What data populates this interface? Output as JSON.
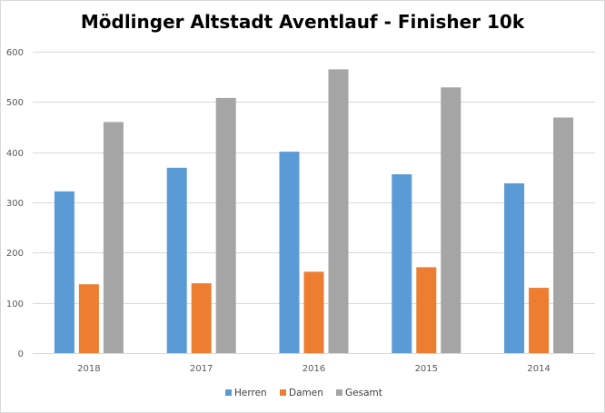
{
  "chart_data": {
    "type": "bar",
    "title": "Mödlinger Altstadt Aventlauf - Finisher 10k",
    "xlabel": "",
    "ylabel": "",
    "categories": [
      "2018",
      "2017",
      "2016",
      "2015",
      "2014"
    ],
    "series": [
      {
        "name": "Herren",
        "color": "#5b9bd5",
        "values": [
          322,
          369,
          401,
          356,
          338
        ]
      },
      {
        "name": "Damen",
        "color": "#ed7d31",
        "values": [
          137,
          139,
          162,
          171,
          130
        ]
      },
      {
        "name": "Gesamt",
        "color": "#a5a5a5",
        "values": [
          460,
          508,
          565,
          529,
          469
        ]
      }
    ],
    "ylim": [
      0,
      600
    ],
    "yticks": [
      0,
      100,
      200,
      300,
      400,
      500,
      600
    ],
    "grid": true,
    "legend": "bottom"
  }
}
